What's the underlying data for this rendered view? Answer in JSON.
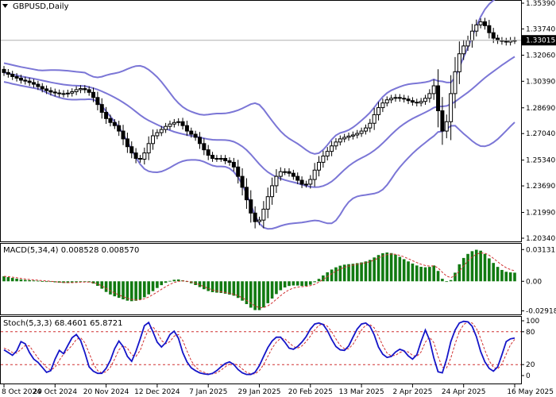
{
  "chart_data": [
    {
      "type": "candlestick",
      "title": "GBPUSD,Daily",
      "y_ticks": [
        "1.35390",
        "1.33740",
        "1.32060",
        "1.30390",
        "1.28690",
        "1.27040",
        "1.25340",
        "1.23690",
        "1.21990",
        "1.20340"
      ],
      "ylim": [
        1.2034,
        1.3539
      ],
      "current_price": "1.33015",
      "x_ticks": [
        "8 Oct 2024",
        "29 Oct 2024",
        "20 Nov 2024",
        "12 Dec 2024",
        "7 Jan 2025",
        "29 Jan 2025",
        "20 Feb 2025",
        "13 Mar 2025",
        "2 Apr 2025",
        "24 Apr 2025",
        "16 May 2025"
      ],
      "closes": [
        1.3095,
        1.3084,
        1.3069,
        1.3059,
        1.3046,
        1.304,
        1.3031,
        1.302,
        1.3005,
        1.299,
        1.2979,
        1.297,
        1.2964,
        1.296,
        1.2958,
        1.2963,
        1.2972,
        1.2985,
        1.2992,
        1.2985,
        1.2968,
        1.2935,
        1.289,
        1.284,
        1.28,
        1.2775,
        1.2755,
        1.272,
        1.267,
        1.262,
        1.258,
        1.2545,
        1.254,
        1.258,
        1.264,
        1.269,
        1.271,
        1.273,
        1.275,
        1.2765,
        1.2775,
        1.278,
        1.2755,
        1.272,
        1.27,
        1.268,
        1.264,
        1.26,
        1.2565,
        1.2545,
        1.2545,
        1.2545,
        1.253,
        1.252,
        1.249,
        1.243,
        1.236,
        1.228,
        1.2195,
        1.214,
        1.215,
        1.222,
        1.23,
        1.237,
        1.243,
        1.246,
        1.246,
        1.245,
        1.243,
        1.2405,
        1.238,
        1.238,
        1.241,
        1.247,
        1.252,
        1.256,
        1.259,
        1.2625,
        1.265,
        1.267,
        1.268,
        1.2688,
        1.2695,
        1.2705,
        1.272,
        1.274,
        1.277,
        1.2825,
        1.287,
        1.29,
        1.292,
        1.293,
        1.2935,
        1.293,
        1.2925,
        1.2915,
        1.2905,
        1.29,
        1.291,
        1.293,
        1.296,
        1.301,
        1.285,
        1.272,
        1.278,
        1.296,
        1.31,
        1.3215,
        1.3265,
        1.33,
        1.336,
        1.34,
        1.342,
        1.3395,
        1.335,
        1.3315,
        1.33,
        1.3295,
        1.329,
        1.33,
        1.3301
      ]
    },
    {
      "type": "bar",
      "title": "MACD(5,34,4) 0.008528 0.008570",
      "y_ticks": [
        "0.03131",
        "0.00",
        "-0.029183"
      ],
      "ylim": [
        -0.0311,
        0.0331
      ],
      "values": [
        0.0049,
        0.0041,
        0.0033,
        0.0026,
        0.0019,
        0.0014,
        0.0011,
        0.0008,
        0.0005,
        0.0002,
        -0.0002,
        -0.0006,
        -0.001,
        -0.0013,
        -0.0016,
        -0.0017,
        -0.0014,
        -0.0009,
        -0.0005,
        -0.0004,
        -0.0009,
        -0.0022,
        -0.0045,
        -0.0073,
        -0.0105,
        -0.013,
        -0.0148,
        -0.0163,
        -0.0178,
        -0.0191,
        -0.0196,
        -0.0192,
        -0.018,
        -0.0158,
        -0.0129,
        -0.0097,
        -0.0066,
        -0.0038,
        -0.0015,
        0.0004,
        0.0015,
        0.0018,
        0.001,
        -0.0004,
        -0.002,
        -0.0037,
        -0.0057,
        -0.0078,
        -0.0096,
        -0.0107,
        -0.0112,
        -0.0115,
        -0.0122,
        -0.0131,
        -0.0142,
        -0.0164,
        -0.0191,
        -0.0225,
        -0.026,
        -0.0284,
        -0.0284,
        -0.0258,
        -0.0216,
        -0.017,
        -0.0126,
        -0.0088,
        -0.0061,
        -0.0046,
        -0.0041,
        -0.0042,
        -0.0046,
        -0.0046,
        -0.0034,
        -0.0009,
        0.0024,
        0.0058,
        0.0089,
        0.0116,
        0.0138,
        0.0154,
        0.0164,
        0.0169,
        0.0173,
        0.0179,
        0.0186,
        0.0196,
        0.0211,
        0.0235,
        0.0259,
        0.0277,
        0.0284,
        0.0278,
        0.0262,
        0.0241,
        0.0218,
        0.0196,
        0.0175,
        0.0156,
        0.0143,
        0.0138,
        0.0142,
        0.0156,
        0.0102,
        0.0025,
        -0.0005,
        0.0012,
        0.0085,
        0.0168,
        0.023,
        0.027,
        0.0297,
        0.0311,
        0.0302,
        0.027,
        0.0226,
        0.0181,
        0.0142,
        0.0112,
        0.0094,
        0.0088,
        0.0085
      ]
    },
    {
      "type": "line",
      "title": "Stoch(5,3,3) 68.4601 65.8721",
      "y_ticks": [
        "100",
        "80",
        "20",
        "0"
      ],
      "ylim": [
        0,
        100
      ],
      "series": [
        {
          "values": [
            47,
            42,
            37,
            45,
            62,
            58,
            42,
            30,
            24,
            15,
            6,
            9,
            30,
            46,
            40,
            55,
            69,
            75,
            64,
            42,
            16,
            8,
            4,
            4,
            13,
            28,
            49,
            63,
            53,
            35,
            26,
            44,
            67,
            91,
            97,
            80,
            61,
            52,
            60,
            75,
            81,
            68,
            42,
            25,
            14,
            9,
            5,
            3,
            2,
            4,
            9,
            16,
            22,
            25,
            20,
            11,
            5,
            2,
            2,
            6,
            18,
            35,
            51,
            63,
            70,
            70,
            61,
            50,
            48,
            53,
            61,
            71,
            85,
            94,
            96,
            93,
            82,
            66,
            53,
            47,
            46,
            54,
            70,
            85,
            94,
            96,
            90,
            74,
            52,
            39,
            33,
            35,
            43,
            48,
            45,
            36,
            30,
            38,
            62,
            83,
            65,
            32,
            7,
            5,
            30,
            62,
            83,
            96,
            99,
            98,
            90,
            71,
            44,
            25,
            13,
            8,
            16,
            38,
            62,
            67,
            68.4601
          ]
        },
        {
          "values": [
            50,
            47,
            42,
            41,
            48,
            55,
            54,
            43,
            32,
            23,
            15,
            10,
            15,
            28,
            39,
            47,
            55,
            66,
            69,
            60,
            41,
            22,
            9,
            5,
            7,
            15,
            30,
            47,
            55,
            50,
            38,
            35,
            46,
            67,
            85,
            89,
            79,
            64,
            58,
            62,
            72,
            75,
            64,
            45,
            27,
            16,
            9,
            6,
            3,
            3,
            5,
            10,
            16,
            21,
            22,
            19,
            12,
            6,
            3,
            3,
            9,
            20,
            35,
            50,
            61,
            68,
            67,
            60,
            53,
            50,
            54,
            62,
            72,
            83,
            92,
            94,
            90,
            80,
            67,
            55,
            49,
            49,
            57,
            70,
            83,
            92,
            93,
            87,
            72,
            55,
            41,
            36,
            37,
            42,
            45,
            43,
            37,
            35,
            43,
            61,
            70,
            60,
            35,
            15,
            14,
            32,
            58,
            80,
            93,
            98,
            96,
            86,
            68,
            46,
            27,
            15,
            12,
            21,
            39,
            56,
            65.8721
          ]
        }
      ]
    }
  ]
}
